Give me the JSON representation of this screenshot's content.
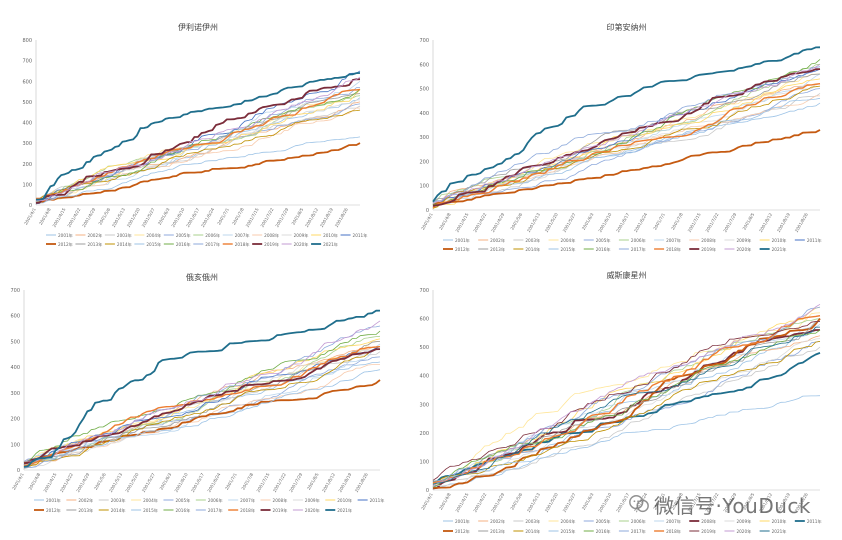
{
  "chart_data": [
    {
      "type": "line",
      "title": "伊利诺伊州",
      "ylim": [
        0,
        800
      ],
      "yticks": [
        0,
        100,
        200,
        300,
        400,
        500,
        600,
        700,
        800
      ],
      "x_ticks": [
        "2001/4/1",
        "2001/4/8",
        "2001/4/15",
        "2001/4/22",
        "2001/4/29",
        "2001/5/6",
        "2001/5/13",
        "2001/5/20",
        "2001/5/27",
        "2001/6/3",
        "2001/6/10",
        "2001/6/17",
        "2001/6/24",
        "2001/7/1",
        "2001/7/8",
        "2001/7/15",
        "2001/7/22",
        "2001/7/29",
        "2001/8/5",
        "2001/8/12",
        "2001/8/19",
        "2001/8/26"
      ],
      "grid": false,
      "legend_position": "bottom",
      "series": [
        {
          "name": "2001年",
          "final": 520,
          "color": "#9dc3e6",
          "width": 0.8
        },
        {
          "name": "2002年",
          "final": 500,
          "color": "#f4b183",
          "width": 0.8
        },
        {
          "name": "2003年",
          "final": 480,
          "color": "#c9c9c9",
          "width": 0.8
        },
        {
          "name": "2004年",
          "final": 540,
          "color": "#ffe699",
          "width": 0.8
        },
        {
          "name": "2005年",
          "final": 490,
          "color": "#8faadc",
          "width": 0.8
        },
        {
          "name": "2006年",
          "final": 530,
          "color": "#a9d18e",
          "width": 0.8
        },
        {
          "name": "2007年",
          "final": 600,
          "color": "#bdd7ee",
          "width": 0.8
        },
        {
          "name": "2008年",
          "final": 470,
          "color": "#f8cbad",
          "width": 0.8
        },
        {
          "name": "2009年",
          "final": 510,
          "color": "#dbdbdb",
          "width": 0.8
        },
        {
          "name": "2010年",
          "final": 560,
          "color": "#ffd966",
          "width": 0.8
        },
        {
          "name": "2011年",
          "final": 650,
          "color": "#4472c4",
          "width": 0.8
        },
        {
          "name": "2012年",
          "final": 300,
          "color": "#c55a11",
          "width": 1.8
        },
        {
          "name": "2013年",
          "final": 540,
          "color": "#9e9e9e",
          "width": 0.8
        },
        {
          "name": "2014年",
          "final": 460,
          "color": "#bf9000",
          "width": 0.8
        },
        {
          "name": "2015年",
          "final": 330,
          "color": "#9dc3e6",
          "width": 0.8
        },
        {
          "name": "2016年",
          "final": 560,
          "color": "#70ad47",
          "width": 0.8
        },
        {
          "name": "2017年",
          "final": 570,
          "color": "#8eaadb",
          "width": 0.8
        },
        {
          "name": "2018年",
          "final": 560,
          "color": "#ed7d31",
          "width": 1.4
        },
        {
          "name": "2019年",
          "final": 610,
          "color": "#7b2c3a",
          "width": 1.8
        },
        {
          "name": "2020年",
          "final": 620,
          "color": "#c39bd3",
          "width": 0.8
        },
        {
          "name": "2021年",
          "final": 640,
          "color": "#1f6e8c",
          "width": 1.8
        }
      ]
    },
    {
      "type": "line",
      "title": "印第安纳州",
      "ylim": [
        0,
        700
      ],
      "yticks": [
        0,
        100,
        200,
        300,
        400,
        500,
        600,
        700
      ],
      "x_ticks": [
        "2001/4/1",
        "2001/4/8",
        "2001/4/15",
        "2001/4/22",
        "2001/4/29",
        "2001/5/6",
        "2001/5/13",
        "2001/5/20",
        "2001/5/27",
        "2001/6/3",
        "2001/6/10",
        "2001/6/17",
        "2001/6/24",
        "2001/7/1",
        "2001/7/8",
        "2001/7/15",
        "2001/7/22",
        "2001/7/29",
        "2001/8/5",
        "2001/8/12",
        "2001/8/19",
        "2001/8/26"
      ],
      "grid": false,
      "legend_position": "bottom",
      "series": [
        {
          "name": "2001年",
          "final": 440,
          "color": "#9dc3e6",
          "width": 0.8
        },
        {
          "name": "2002年",
          "final": 520,
          "color": "#f4b183",
          "width": 0.8
        },
        {
          "name": "2003年",
          "final": 480,
          "color": "#c9c9c9",
          "width": 0.8
        },
        {
          "name": "2004年",
          "final": 560,
          "color": "#ffe699",
          "width": 0.8
        },
        {
          "name": "2005年",
          "final": 500,
          "color": "#8faadc",
          "width": 0.8
        },
        {
          "name": "2006年",
          "final": 600,
          "color": "#a9d18e",
          "width": 0.8
        },
        {
          "name": "2007年",
          "final": 560,
          "color": "#bdd7ee",
          "width": 0.8
        },
        {
          "name": "2008年",
          "final": 470,
          "color": "#f8cbad",
          "width": 0.8
        },
        {
          "name": "2009年",
          "final": 520,
          "color": "#dbdbdb",
          "width": 0.8
        },
        {
          "name": "2010年",
          "final": 540,
          "color": "#ffd966",
          "width": 0.8
        },
        {
          "name": "2011年",
          "final": 580,
          "color": "#4472c4",
          "width": 0.8
        },
        {
          "name": "2012年",
          "final": 330,
          "color": "#c55a11",
          "width": 1.8
        },
        {
          "name": "2013年",
          "final": 560,
          "color": "#9e9e9e",
          "width": 0.8
        },
        {
          "name": "2014年",
          "final": 510,
          "color": "#bf9000",
          "width": 0.8
        },
        {
          "name": "2015年",
          "final": 460,
          "color": "#9dc3e6",
          "width": 0.8
        },
        {
          "name": "2016年",
          "final": 620,
          "color": "#70ad47",
          "width": 0.8
        },
        {
          "name": "2017年",
          "final": 590,
          "color": "#8eaadb",
          "width": 0.8
        },
        {
          "name": "2018年",
          "final": 520,
          "color": "#ed7d31",
          "width": 1.4
        },
        {
          "name": "2019年",
          "final": 580,
          "color": "#7b2c3a",
          "width": 1.8
        },
        {
          "name": "2020年",
          "final": 600,
          "color": "#c39bd3",
          "width": 0.8
        },
        {
          "name": "2021年",
          "final": 670,
          "color": "#1f6e8c",
          "width": 1.8
        }
      ]
    },
    {
      "type": "line",
      "title": "俄亥俄州",
      "ylim": [
        0,
        700
      ],
      "yticks": [
        0,
        100,
        200,
        300,
        400,
        500,
        600,
        700
      ],
      "x_ticks": [
        "2001/4/1",
        "2001/4/8",
        "2001/4/15",
        "2001/4/22",
        "2001/4/29",
        "2001/5/6",
        "2001/5/13",
        "2001/5/20",
        "2001/5/27",
        "2001/6/3",
        "2001/6/10",
        "2001/6/17",
        "2001/6/24",
        "2001/7/1",
        "2001/7/8",
        "2001/7/15",
        "2001/7/22",
        "2001/7/29",
        "2001/8/5",
        "2001/8/12",
        "2001/8/19",
        "2001/8/26"
      ],
      "grid": false,
      "legend_position": "bottom",
      "series": [
        {
          "name": "2001年",
          "final": 420,
          "color": "#9dc3e6",
          "width": 0.8
        },
        {
          "name": "2002年",
          "final": 480,
          "color": "#f4b183",
          "width": 0.8
        },
        {
          "name": "2003年",
          "final": 460,
          "color": "#c9c9c9",
          "width": 0.8
        },
        {
          "name": "2004年",
          "final": 500,
          "color": "#ffe699",
          "width": 0.8
        },
        {
          "name": "2005年",
          "final": 440,
          "color": "#8faadc",
          "width": 0.8
        },
        {
          "name": "2006年",
          "final": 520,
          "color": "#a9d18e",
          "width": 0.8
        },
        {
          "name": "2007年",
          "final": 490,
          "color": "#bdd7ee",
          "width": 0.8
        },
        {
          "name": "2008年",
          "final": 410,
          "color": "#f8cbad",
          "width": 0.8
        },
        {
          "name": "2009年",
          "final": 470,
          "color": "#dbdbdb",
          "width": 0.8
        },
        {
          "name": "2010年",
          "final": 510,
          "color": "#ffd966",
          "width": 0.8
        },
        {
          "name": "2011年",
          "final": 480,
          "color": "#4472c4",
          "width": 0.8
        },
        {
          "name": "2012年",
          "final": 350,
          "color": "#c55a11",
          "width": 1.8
        },
        {
          "name": "2013年",
          "final": 500,
          "color": "#9e9e9e",
          "width": 0.8
        },
        {
          "name": "2014年",
          "final": 470,
          "color": "#bf9000",
          "width": 0.8
        },
        {
          "name": "2015年",
          "final": 390,
          "color": "#9dc3e6",
          "width": 0.8
        },
        {
          "name": "2016年",
          "final": 540,
          "color": "#70ad47",
          "width": 0.8
        },
        {
          "name": "2017年",
          "final": 560,
          "color": "#8eaadb",
          "width": 0.8
        },
        {
          "name": "2018年",
          "final": 480,
          "color": "#ed7d31",
          "width": 1.4
        },
        {
          "name": "2019年",
          "final": 470,
          "color": "#7b2c3a",
          "width": 1.8
        },
        {
          "name": "2020年",
          "final": 580,
          "color": "#c39bd3",
          "width": 0.8
        },
        {
          "name": "2021年",
          "final": 620,
          "color": "#1f6e8c",
          "width": 1.8
        }
      ]
    },
    {
      "type": "line",
      "title": "威斯康星州",
      "ylim": [
        0,
        700
      ],
      "yticks": [
        0,
        100,
        200,
        300,
        400,
        500,
        600,
        700
      ],
      "x_ticks": [
        "2001/4/1",
        "2001/4/8",
        "2001/4/15",
        "2001/4/22",
        "2001/4/29",
        "2001/5/6",
        "2001/5/13",
        "2001/5/20",
        "2001/5/27",
        "2001/6/3",
        "2001/6/10",
        "2001/6/17",
        "2001/6/24",
        "2001/7/1",
        "2001/7/8",
        "2001/7/15",
        "2001/7/22",
        "2001/7/29",
        "2001/8/5",
        "2001/8/12",
        "2001/8/19",
        "2001/8/26"
      ],
      "grid": false,
      "legend_position": "bottom",
      "series": [
        {
          "name": "2001年",
          "final": 560,
          "color": "#9dc3e6",
          "width": 0.8
        },
        {
          "name": "2002年",
          "final": 540,
          "color": "#f4b183",
          "width": 0.8
        },
        {
          "name": "2003年",
          "final": 500,
          "color": "#c9c9c9",
          "width": 0.8
        },
        {
          "name": "2004年",
          "final": 620,
          "color": "#ffe699",
          "width": 0.8
        },
        {
          "name": "2005年",
          "final": 520,
          "color": "#8faadc",
          "width": 0.8
        },
        {
          "name": "2006年",
          "final": 600,
          "color": "#a9d18e",
          "width": 0.8
        },
        {
          "name": "2007年",
          "final": 580,
          "color": "#bdd7ee",
          "width": 0.8
        },
        {
          "name": "2008年",
          "final": 560,
          "color": "#7b2c3a",
          "width": 1.8
        },
        {
          "name": "2009年",
          "final": 530,
          "color": "#dbdbdb",
          "width": 0.8
        },
        {
          "name": "2010年",
          "final": 640,
          "color": "#ffd966",
          "width": 0.8
        },
        {
          "name": "2011年",
          "final": 480,
          "color": "#1f6e8c",
          "width": 1.8
        },
        {
          "name": "2012年",
          "final": 600,
          "color": "#c55a11",
          "width": 1.8
        },
        {
          "name": "2013年",
          "final": 590,
          "color": "#9e9e9e",
          "width": 0.8
        },
        {
          "name": "2014年",
          "final": 520,
          "color": "#bf9000",
          "width": 0.8
        },
        {
          "name": "2015年",
          "final": 330,
          "color": "#9dc3e6",
          "width": 0.8
        },
        {
          "name": "2016年",
          "final": 560,
          "color": "#70ad47",
          "width": 0.8
        },
        {
          "name": "2017年",
          "final": 640,
          "color": "#8eaadb",
          "width": 0.8
        },
        {
          "name": "2018年",
          "final": 610,
          "color": "#ed7d31",
          "width": 1.4
        },
        {
          "name": "2019年",
          "final": 590,
          "color": "#7b2c3a",
          "width": 0.8
        },
        {
          "name": "2020年",
          "final": 650,
          "color": "#c39bd3",
          "width": 0.8
        },
        {
          "name": "2021年",
          "final": 570,
          "color": "#1f6e8c",
          "width": 0.8
        }
      ]
    }
  ],
  "watermark": {
    "text": "微信号·YouDuck",
    "icon": "wechat-icon"
  }
}
